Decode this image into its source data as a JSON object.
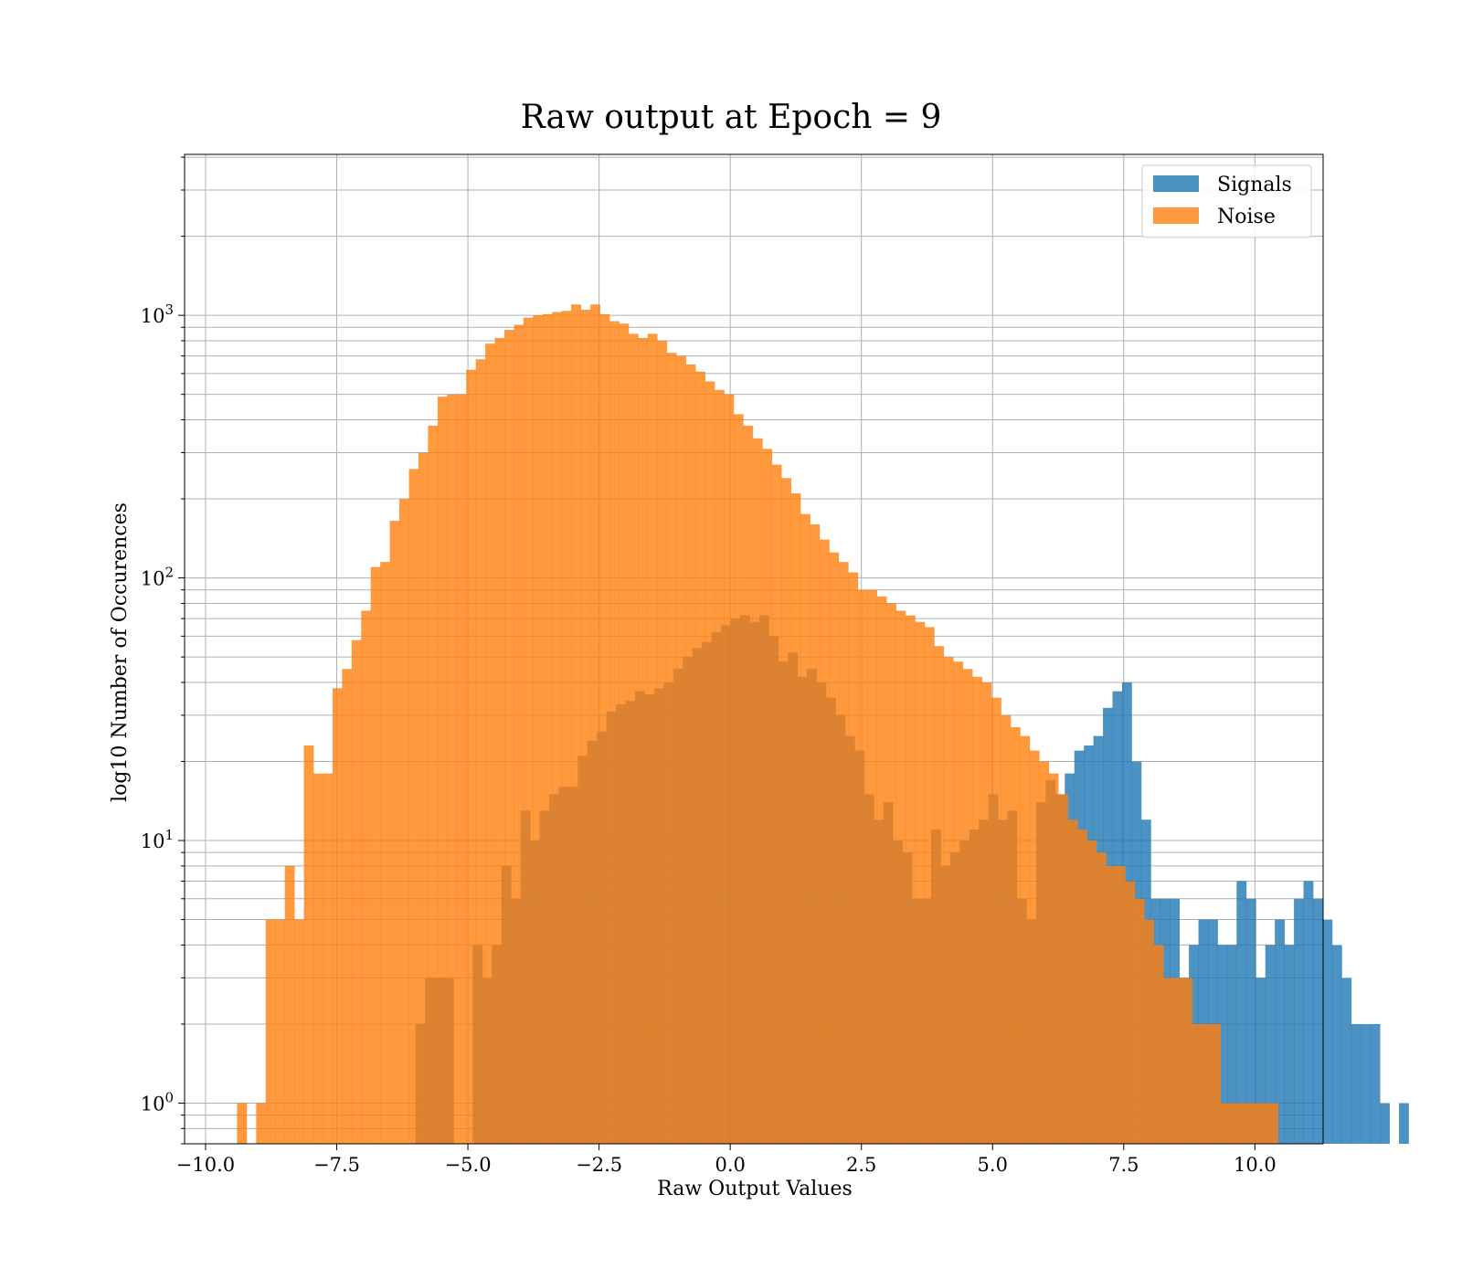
{
  "chart_data": {
    "type": "bar",
    "title": "Raw output at Epoch = 9",
    "xlabel": "Raw Output Values",
    "ylabel": "log10 Number of Occurences",
    "xlim": [
      -10.4,
      11.3
    ],
    "ylim": [
      0.7,
      4100
    ],
    "yscale": "log",
    "grid": true,
    "legend_position": "top-right",
    "x_ticks": [
      -10.0,
      -7.5,
      -5.0,
      -2.5,
      0.0,
      2.5,
      5.0,
      7.5,
      10.0
    ],
    "x_tick_labels": [
      "−10.0",
      "−7.5",
      "−5.0",
      "−2.5",
      "0.0",
      "2.5",
      "5.0",
      "7.5",
      "10.0"
    ],
    "y_ticks": [
      1,
      10,
      100,
      1000
    ],
    "y_tick_labels": [
      {
        "base": "10",
        "exp": "0"
      },
      {
        "base": "10",
        "exp": "1"
      },
      {
        "base": "10",
        "exp": "2"
      },
      {
        "base": "10",
        "exp": "3"
      }
    ],
    "series": [
      {
        "name": "Signals",
        "color": "#1f77b4",
        "opacity": 0.8,
        "bin_start": -6.0,
        "bin_width": 0.182,
        "values": [
          2,
          3,
          3,
          3,
          0,
          0,
          4,
          3,
          4,
          8,
          6,
          13,
          10,
          13,
          15,
          16,
          16,
          21,
          24,
          26,
          31,
          33,
          34,
          37,
          36,
          38,
          40,
          45,
          50,
          54,
          57,
          62,
          66,
          70,
          72,
          68,
          72,
          60,
          48,
          52,
          42,
          45,
          40,
          35,
          30,
          25,
          22,
          15,
          12,
          14,
          10,
          9,
          6,
          6,
          11,
          8,
          9,
          10,
          11,
          12,
          15,
          12,
          13,
          6,
          5,
          14,
          17,
          15,
          18,
          22,
          23,
          25,
          32,
          37,
          40,
          20,
          12,
          6,
          6,
          6,
          3,
          4,
          5,
          5,
          4,
          4,
          7,
          6,
          3,
          4,
          5,
          4,
          6,
          7,
          6,
          5,
          4,
          3,
          2,
          2,
          2,
          1,
          0,
          1
        ]
      },
      {
        "name": "Noise",
        "color": "#ff7f0e",
        "opacity": 0.8,
        "bin_start": -9.4,
        "bin_width": 0.182,
        "values": [
          1,
          0,
          1,
          5,
          5,
          8,
          5,
          23,
          18,
          18,
          38,
          45,
          58,
          75,
          110,
          115,
          165,
          200,
          260,
          300,
          380,
          490,
          500,
          500,
          620,
          680,
          780,
          820,
          880,
          920,
          980,
          1000,
          1010,
          1030,
          1040,
          1100,
          1050,
          1100,
          1010,
          950,
          930,
          850,
          820,
          850,
          800,
          720,
          700,
          650,
          610,
          560,
          520,
          500,
          420,
          380,
          340,
          310,
          270,
          240,
          210,
          175,
          160,
          140,
          125,
          115,
          105,
          90,
          90,
          85,
          80,
          75,
          72,
          68,
          65,
          55,
          50,
          48,
          45,
          42,
          40,
          35,
          30,
          27,
          25,
          22,
          20,
          18,
          15,
          12,
          11,
          10,
          9,
          8,
          8,
          7,
          6,
          5,
          4,
          3,
          3,
          3,
          2,
          2,
          2,
          1,
          1,
          1,
          1,
          1,
          1
        ]
      }
    ]
  }
}
